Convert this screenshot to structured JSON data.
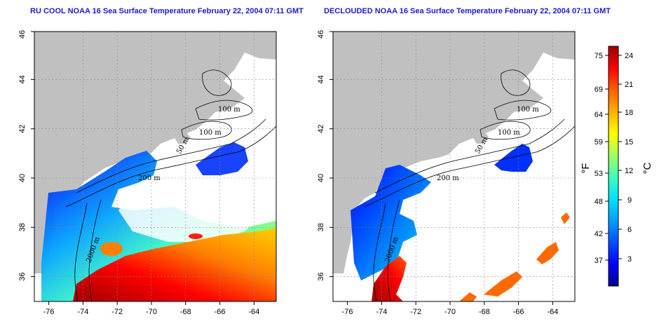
{
  "panels": [
    {
      "title": "RU COOL NOAA 16 Sea Surface Temperature February 22, 2004 07:11 GMT",
      "lon_ticks": [
        "-76",
        "-74",
        "-72",
        "-70",
        "-68",
        "-66",
        "-64"
      ],
      "lat_ticks": [
        "36",
        "38",
        "40",
        "42",
        "44",
        "46"
      ],
      "contour_labels": [
        "100 m",
        "100 m",
        "50 m",
        "200 m",
        "2000 m"
      ]
    },
    {
      "title": "DECLOUDED NOAA 16 Sea Surface Temperature February 22, 2004 07:11 GMT",
      "lon_ticks": [
        "-76",
        "-74",
        "-72",
        "-70",
        "-68",
        "-66",
        "-64"
      ],
      "lat_ticks": [
        "36",
        "38",
        "40",
        "42",
        "44",
        "46"
      ],
      "contour_labels": [
        "100 m",
        "100 m",
        "50 m",
        "200 m",
        "2000 m"
      ]
    }
  ],
  "colorbar": {
    "fahrenheit_ticks": [
      "75",
      "69",
      "64",
      "59",
      "53",
      "48",
      "42",
      "37"
    ],
    "celsius_ticks": [
      "24",
      "21",
      "18",
      "15",
      "12",
      "9",
      "6",
      "3"
    ],
    "fahrenheit_unit": "°F",
    "celsius_unit": "°C",
    "colors": [
      "#00008f",
      "#0000ff",
      "#0050ff",
      "#00a0ff",
      "#00e0ff",
      "#40ffc0",
      "#a0ff60",
      "#ffff00",
      "#ffb000",
      "#ff6000",
      "#ff0000",
      "#a00000"
    ]
  },
  "colors": {
    "land": "#c0c0c0",
    "no_data": "#ffffff",
    "title": "#1c1ccc"
  }
}
